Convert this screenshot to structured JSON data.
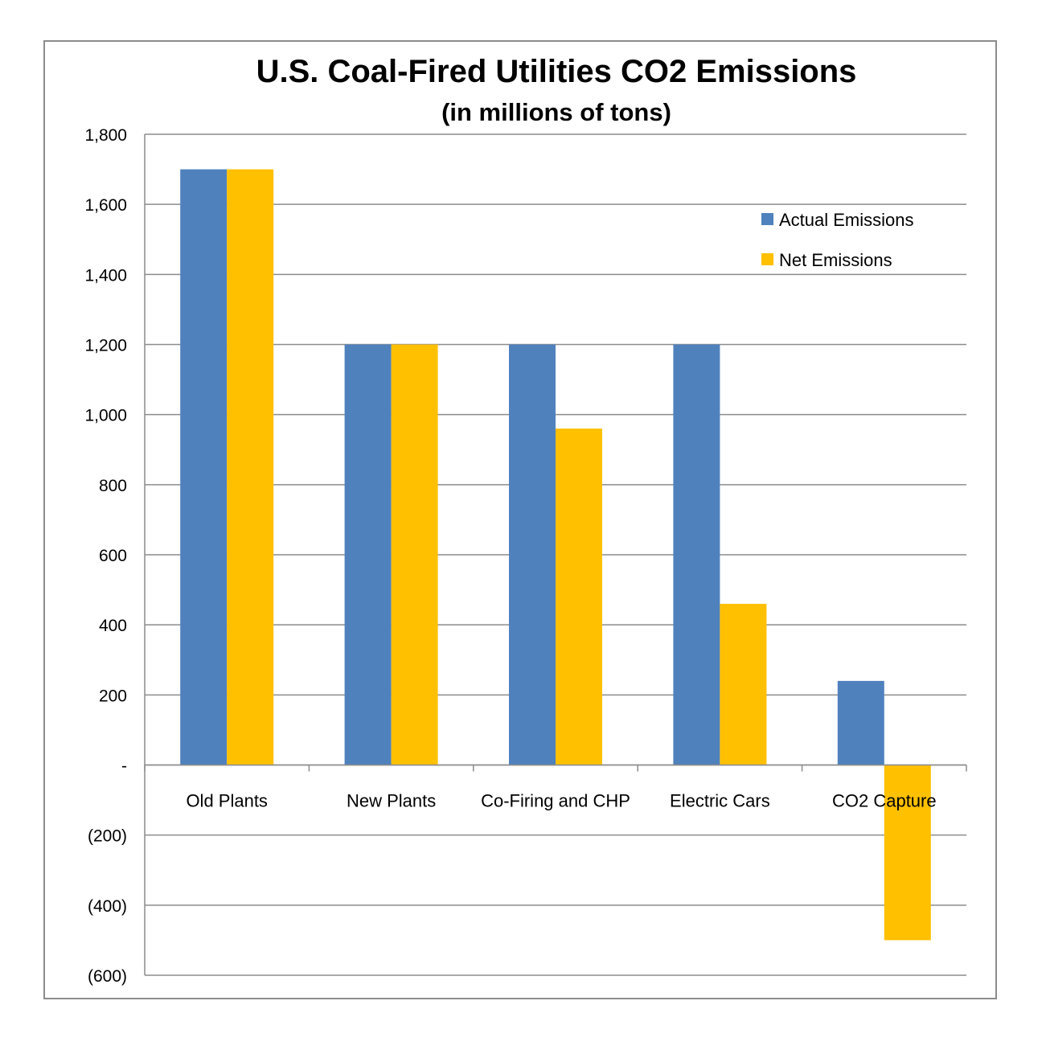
{
  "chart_data": {
    "type": "bar",
    "title": "U.S. Coal-Fired Utilities CO2 Emissions",
    "subtitle": "(in millions of tons)",
    "categories": [
      "Old Plants",
      "New Plants",
      "Co-Firing and CHP",
      "Electric Cars",
      "CO2 Capture"
    ],
    "series": [
      {
        "name": "Actual Emissions",
        "color": "#4f81bd",
        "values": [
          1700,
          1200,
          1200,
          1200,
          240
        ]
      },
      {
        "name": "Net Emissions",
        "color": "#ffc000",
        "values": [
          1700,
          1200,
          960,
          460,
          -500
        ]
      }
    ],
    "ylim": [
      -600,
      1800
    ],
    "yticks": [
      1800,
      1600,
      1400,
      1200,
      1000,
      800,
      600,
      400,
      200,
      0,
      -200,
      -400,
      -600
    ],
    "ytick_labels": [
      "1,800",
      "1,600",
      "1,400",
      "1,200",
      "1,000",
      "800",
      "600",
      "400",
      "200",
      "-",
      "(200)",
      "(400)",
      "(600)"
    ],
    "grid": true,
    "legend_position": "top-right",
    "xlabel": "",
    "ylabel": ""
  }
}
